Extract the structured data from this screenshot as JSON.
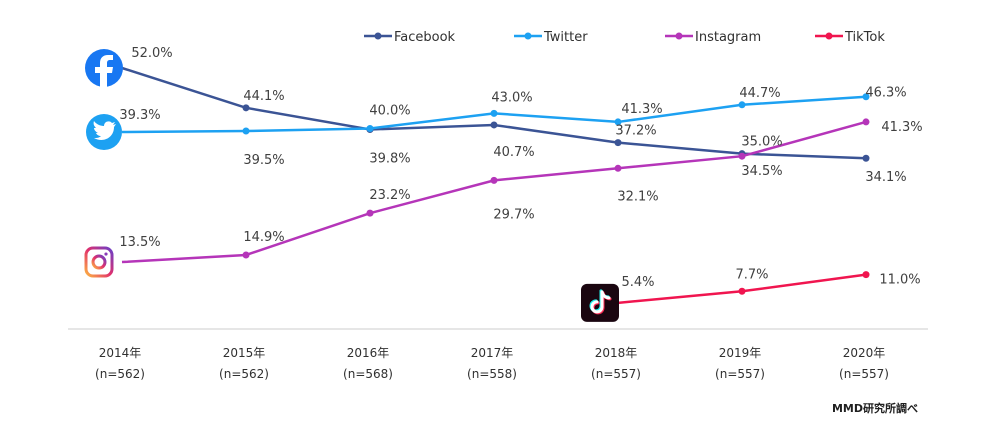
{
  "chart_data": {
    "type": "line",
    "title": "",
    "xlabel": "",
    "ylabel": "",
    "ylim": [
      0,
      55
    ],
    "grid": false,
    "legend_position": "top",
    "categories": [
      "2014年",
      "2015年",
      "2016年",
      "2017年",
      "2018年",
      "2019年",
      "2020年"
    ],
    "sample_sizes": [
      "(n=562)",
      "(n=562)",
      "(n=568)",
      "(n=558)",
      "(n=557)",
      "(n=557)",
      "(n=557)"
    ],
    "series": [
      {
        "name": "Facebook",
        "color": "#3b5495",
        "icon": "facebook-icon",
        "values": [
          52.0,
          44.1,
          39.8,
          40.7,
          37.2,
          35.0,
          34.1
        ],
        "labels": [
          "52.0%",
          "44.1%",
          "39.8%",
          "40.7%",
          "37.2%",
          "35.0%",
          "34.1%"
        ]
      },
      {
        "name": "Twitter",
        "color": "#1da1f2",
        "icon": "twitter-icon",
        "values": [
          39.3,
          39.5,
          40.0,
          43.0,
          41.3,
          44.7,
          46.3
        ],
        "labels": [
          "39.3%",
          "39.5%",
          "40.0%",
          "43.0%",
          "41.3%",
          "44.7%",
          "46.3%"
        ]
      },
      {
        "name": "Instagram",
        "color": "#b535b9",
        "icon": "instagram-icon",
        "values": [
          13.5,
          14.9,
          23.2,
          29.7,
          32.1,
          34.5,
          41.3
        ],
        "labels": [
          "13.5%",
          "14.9%",
          "23.2%",
          "29.7%",
          "32.1%",
          "34.5%",
          "41.3%"
        ]
      },
      {
        "name": "TikTok",
        "color": "#f0154f",
        "icon": "tiktok-icon",
        "values": [
          null,
          null,
          null,
          null,
          5.4,
          7.7,
          11.0
        ],
        "labels": [
          null,
          null,
          null,
          null,
          "5.4%",
          "7.7%",
          "11.0%"
        ]
      }
    ],
    "source_note": "MMD研究所調べ"
  }
}
